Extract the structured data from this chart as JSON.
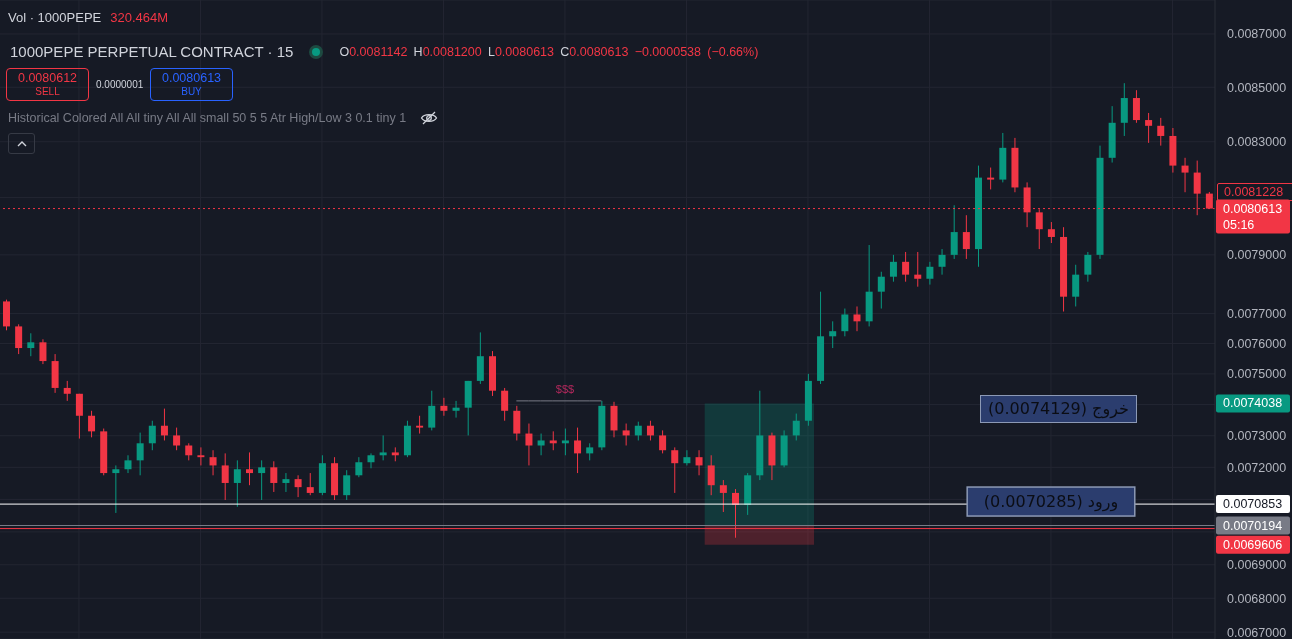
{
  "chart_data": {
    "type": "candlestick",
    "title": "1000PEPE PERPETUAL CONTRACT · 15",
    "subtitle": "O0.0081142 H0.0081200 L0.0080613 C0.0080613 −0.0000538 (−0.66%)",
    "categories": [
      null,
      null,
      null,
      null,
      null,
      null,
      null,
      null,
      null,
      null,
      null,
      null,
      null,
      null,
      null,
      null,
      null,
      null,
      null,
      null,
      null,
      null,
      null,
      null,
      null,
      null,
      null,
      null,
      null,
      null,
      null,
      null,
      null,
      null,
      null,
      null,
      null,
      null,
      null,
      null,
      null,
      null,
      null,
      null,
      null,
      null,
      null,
      null,
      null,
      null,
      null,
      null,
      null,
      null,
      null,
      null,
      null,
      null,
      null,
      null,
      null,
      null,
      null,
      null,
      null,
      null,
      null,
      null,
      null,
      null,
      null,
      null,
      null,
      null,
      null,
      null,
      null,
      null,
      null,
      null,
      null,
      null,
      null,
      null,
      null,
      null,
      null,
      null,
      null,
      null,
      null,
      null,
      null,
      null,
      null,
      null,
      null,
      null,
      null,
      null
    ],
    "ohlc": [
      [
        0.007741,
        0.007747,
        0.007644,
        0.007657
      ],
      [
        0.007657,
        0.007664,
        0.007565,
        0.007585
      ],
      [
        0.007585,
        0.007634,
        0.007558,
        0.007604
      ],
      [
        0.007604,
        0.007614,
        0.007532,
        0.007542
      ],
      [
        0.007542,
        0.007565,
        0.007438,
        0.007454
      ],
      [
        0.007454,
        0.007477,
        0.007412,
        0.007435
      ],
      [
        0.007435,
        0.007435,
        0.007291,
        0.007364
      ],
      [
        0.007364,
        0.00738,
        0.007295,
        0.007314
      ],
      [
        0.007314,
        0.007323,
        0.007175,
        0.007182
      ],
      [
        0.007182,
        0.007206,
        0.007058,
        0.007194
      ],
      [
        0.007194,
        0.007238,
        0.007182,
        0.007222
      ],
      [
        0.007222,
        0.00731,
        0.007175,
        0.007276
      ],
      [
        0.007276,
        0.007348,
        0.007254,
        0.007332
      ],
      [
        0.007332,
        0.007387,
        0.007285,
        0.007301
      ],
      [
        0.007301,
        0.007326,
        0.007254,
        0.007269
      ],
      [
        0.007269,
        0.007276,
        0.007222,
        0.007238
      ],
      [
        0.007238,
        0.007263,
        0.007206,
        0.007232
      ],
      [
        0.007232,
        0.007254,
        0.007175,
        0.007206
      ],
      [
        0.007206,
        0.007244,
        0.007098,
        0.007151
      ],
      [
        0.007151,
        0.007222,
        0.007077,
        0.007194
      ],
      [
        0.007194,
        0.007247,
        0.007144,
        0.007182
      ],
      [
        0.007182,
        0.007222,
        0.007098,
        0.0072
      ],
      [
        0.0072,
        0.007219,
        0.007123,
        0.007151
      ],
      [
        0.007151,
        0.007182,
        0.007123,
        0.007163
      ],
      [
        0.007163,
        0.007175,
        0.007107,
        0.007138
      ],
      [
        0.007138,
        0.007182,
        0.007113,
        0.00712
      ],
      [
        0.00712,
        0.007238,
        0.007113,
        0.007213
      ],
      [
        0.007213,
        0.007232,
        0.007098,
        0.007113
      ],
      [
        0.007113,
        0.007191,
        0.007098,
        0.007175
      ],
      [
        0.007175,
        0.007232,
        0.007169,
        0.007216
      ],
      [
        0.007216,
        0.007244,
        0.007197,
        0.007238
      ],
      [
        0.007238,
        0.007301,
        0.007222,
        0.007247
      ],
      [
        0.007247,
        0.007263,
        0.007219,
        0.007238
      ],
      [
        0.007238,
        0.007348,
        0.007232,
        0.007332
      ],
      [
        0.007332,
        0.007364,
        0.007307,
        0.007326
      ],
      [
        0.007326,
        0.007445,
        0.007317,
        0.007396
      ],
      [
        0.007396,
        0.007422,
        0.007364,
        0.00738
      ],
      [
        0.00738,
        0.007412,
        0.007358,
        0.00739
      ],
      [
        0.00739,
        0.007477,
        0.007301,
        0.007477
      ],
      [
        0.007477,
        0.007637,
        0.007467,
        0.007558
      ],
      [
        0.007558,
        0.007575,
        0.007428,
        0.007445
      ],
      [
        0.007445,
        0.007454,
        0.007348,
        0.00738
      ],
      [
        0.00738,
        0.007396,
        0.007285,
        0.007307
      ],
      [
        0.007307,
        0.007339,
        0.007206,
        0.007269
      ],
      [
        0.007269,
        0.007307,
        0.007238,
        0.007285
      ],
      [
        0.007285,
        0.007314,
        0.007254,
        0.007276
      ],
      [
        0.007276,
        0.007323,
        0.007238,
        0.007285
      ],
      [
        0.007285,
        0.007326,
        0.007182,
        0.007244
      ],
      [
        0.007244,
        0.007276,
        0.007222,
        0.007263
      ],
      [
        0.007263,
        0.007412,
        0.007254,
        0.007396
      ],
      [
        0.007396,
        0.007409,
        0.007295,
        0.007317
      ],
      [
        0.007317,
        0.007339,
        0.007269,
        0.007301
      ],
      [
        0.007301,
        0.007345,
        0.007285,
        0.007332
      ],
      [
        0.007332,
        0.007348,
        0.007285,
        0.007301
      ],
      [
        0.007301,
        0.007317,
        0.007244,
        0.007254
      ],
      [
        0.007254,
        0.007263,
        0.00712,
        0.007213
      ],
      [
        0.007213,
        0.007254,
        0.007206,
        0.007232
      ],
      [
        0.007232,
        0.007254,
        0.007175,
        0.007206
      ],
      [
        0.007206,
        0.007238,
        0.007113,
        0.007144
      ],
      [
        0.007144,
        0.00716,
        0.007061,
        0.00712
      ],
      [
        0.00712,
        0.007132,
        0.006982,
        0.007083
      ],
      [
        0.007083,
        0.007182,
        0.007052,
        0.007175
      ],
      [
        0.007175,
        0.007445,
        0.00716,
        0.007301
      ],
      [
        0.007301,
        0.00731,
        0.00716,
        0.007206
      ],
      [
        0.007206,
        0.007317,
        0.0072,
        0.007301
      ],
      [
        0.007301,
        0.007371,
        0.007285,
        0.007348
      ],
      [
        0.007348,
        0.0075,
        0.007332,
        0.007477
      ],
      [
        0.007477,
        0.007774,
        0.007467,
        0.007624
      ],
      [
        0.007624,
        0.007674,
        0.007585,
        0.007641
      ],
      [
        0.007641,
        0.007717,
        0.007624,
        0.007697
      ],
      [
        0.007697,
        0.007724,
        0.007641,
        0.007674
      ],
      [
        0.007674,
        0.007934,
        0.007657,
        0.007774
      ],
      [
        0.007774,
        0.007842,
        0.007717,
        0.007825
      ],
      [
        0.007825,
        0.0079,
        0.007808,
        0.007876
      ],
      [
        0.007876,
        0.00791,
        0.007808,
        0.007832
      ],
      [
        0.007832,
        0.00791,
        0.007791,
        0.007818
      ],
      [
        0.007818,
        0.007876,
        0.007798,
        0.007859
      ],
      [
        0.007859,
        0.00792,
        0.007832,
        0.0079
      ],
      [
        0.0079,
        0.008073,
        0.007886,
        0.007979
      ],
      [
        0.007979,
        0.008038,
        0.007886,
        0.00792
      ],
      [
        0.00792,
        0.008214,
        0.007859,
        0.008171
      ],
      [
        0.008171,
        0.008207,
        0.008129,
        0.008164
      ],
      [
        0.008164,
        0.008332,
        0.008154,
        0.008278
      ],
      [
        0.008278,
        0.008314,
        0.008119,
        0.008136
      ],
      [
        0.008136,
        0.008154,
        0.007996,
        0.008048
      ],
      [
        0.008048,
        0.008059,
        0.00792,
        0.007989
      ],
      [
        0.007989,
        0.008014,
        0.007941,
        0.007962
      ],
      [
        0.007962,
        0.007996,
        0.007707,
        0.007757
      ],
      [
        0.007757,
        0.007866,
        0.007724,
        0.007832
      ],
      [
        0.007832,
        0.00791,
        0.007808,
        0.0079
      ],
      [
        0.0079,
        0.008286,
        0.007886,
        0.008242
      ],
      [
        0.008242,
        0.00843,
        0.008225,
        0.008369
      ],
      [
        0.008369,
        0.008515,
        0.008321,
        0.00846
      ],
      [
        0.00846,
        0.008489,
        0.008369,
        0.008379
      ],
      [
        0.008379,
        0.008405,
        0.008296,
        0.008358
      ],
      [
        0.008358,
        0.008387,
        0.008286,
        0.008321
      ],
      [
        0.008321,
        0.00835,
        0.008189,
        0.008214
      ],
      [
        0.008214,
        0.008242,
        0.008119,
        0.008189
      ],
      [
        0.008189,
        0.008232,
        0.008038,
        0.008114
      ],
      [
        0.0081142,
        0.00812,
        0.0080613,
        0.0080613
      ]
    ],
    "colors": [
      "#f23645",
      "#f23645",
      "#089981",
      "#f23645",
      "#f23645",
      "#f23645",
      "#f23645",
      "#f23645",
      "#f23645",
      "#089981",
      "#089981",
      "#089981",
      "#089981",
      "#f23645",
      "#f23645",
      "#f23645",
      "#f23645",
      "#f23645",
      "#f23645",
      "#089981",
      "#f23645",
      "#089981",
      "#f23645",
      "#089981",
      "#f23645",
      "#f23645",
      "#089981",
      "#f23645",
      "#089981",
      "#089981",
      "#089981",
      "#089981",
      "#f23645",
      "#089981",
      "#f23645",
      "#089981",
      "#f23645",
      "#089981",
      "#089981",
      "#089981",
      "#f23645",
      "#f23645",
      "#f23645",
      "#f23645",
      "#089981",
      "#f23645",
      "#089981",
      "#f23645",
      "#089981",
      "#089981",
      "#f23645",
      "#f23645",
      "#089981",
      "#f23645",
      "#f23645",
      "#f23645",
      "#089981",
      "#f23645",
      "#f23645",
      "#f23645",
      "#f23645",
      "#089981",
      "#089981",
      "#f23645",
      "#089981",
      "#089981",
      "#089981",
      "#089981",
      "#089981",
      "#089981",
      "#f23645",
      "#089981",
      "#089981",
      "#089981",
      "#f23645",
      "#f23645",
      "#089981",
      "#089981",
      "#089981",
      "#f23645",
      "#089981",
      "#f23645",
      "#089981",
      "#f23645",
      "#f23645",
      "#f23645",
      "#f23645",
      "#f23645",
      "#089981",
      "#089981",
      "#089981",
      "#089981",
      "#089981",
      "#f23645",
      "#f23645",
      "#f23645",
      "#f23645",
      "#f23645",
      "#f23645",
      "#f23645"
    ],
    "series": [
      {
        "type": "line",
        "color": "#787b86",
        "values": [
          null,
          null,
          null,
          null,
          null,
          null,
          null,
          null,
          null,
          null,
          null,
          null,
          null,
          null,
          null,
          null,
          null,
          null,
          null,
          null,
          null,
          null,
          null,
          null,
          null,
          null,
          null,
          null,
          null,
          null,
          null,
          null,
          null,
          null,
          null,
          null,
          null,
          null,
          null,
          null,
          null,
          null,
          0.007412,
          0.007412,
          0.007412,
          0.007412,
          0.007412,
          0.007412,
          0.007412,
          0.007412,
          null,
          null,
          null,
          null,
          null,
          null,
          null,
          null,
          null,
          null,
          null,
          null,
          null,
          null,
          null,
          null,
          null,
          null,
          null,
          null,
          null,
          null,
          null,
          null,
          null,
          null,
          null,
          null,
          null,
          null,
          null,
          null,
          null,
          null,
          null,
          null,
          null,
          null,
          null,
          null,
          null,
          null,
          null,
          null,
          null,
          null,
          null,
          null,
          null,
          null
        ]
      }
    ],
    "log": true,
    "ylim": [
      0.00668,
      0.00883
    ],
    "yticks": [
      {
        "value": 0.0067,
        "label": "0.0067000"
      },
      {
        "value": 0.0068,
        "label": "0.0068000"
      },
      {
        "value": 0.0069,
        "label": "0.0069000"
      },
      {
        "value": 0.007,
        "label": null
      },
      {
        "value": 0.0071,
        "label": null
      },
      {
        "value": 0.0072,
        "label": "0.0072000"
      },
      {
        "value": 0.0073,
        "label": "0.0073000"
      },
      {
        "value": 0.0074,
        "label": null
      },
      {
        "value": 0.0075,
        "label": "0.0075000"
      },
      {
        "value": 0.0076,
        "label": "0.0076000"
      },
      {
        "value": 0.0077,
        "label": "0.0077000"
      },
      {
        "value": 0.0079,
        "label": "0.0079000"
      },
      {
        "value": 0.0081,
        "label": null
      },
      {
        "value": 0.0083,
        "label": "0.0083000"
      },
      {
        "value": 0.0085,
        "label": "0.0085000"
      },
      {
        "value": 0.0087,
        "label": "0.0087000"
      }
    ],
    "grid": true,
    "tick_labels": "y",
    "ref_lines": [
      {
        "axis": "y",
        "value": 0.0080613,
        "label": "0.0080613\n05:16",
        "color": "#f23645",
        "line_style": "dotted"
      },
      {
        "axis": "y",
        "value": 0.0070853,
        "label": "0.0070853",
        "color": "#ffffff"
      },
      {
        "axis": "y",
        "value": 0.0070194,
        "label": "0.0070194",
        "color": "#787b86"
      },
      {
        "axis": "y",
        "value": 0.00701,
        "color": "#f23645"
      }
    ],
    "bands": [
      {
        "axis": "y",
        "from": 0.0070194,
        "to": 0.0074038,
        "color": "#089981"
      },
      {
        "axis": "y",
        "from": 0.0069606,
        "to": 0.0070194,
        "color": "#f23645"
      }
    ],
    "annotations": [
      "Vol · 1000PEPE",
      "320.464M",
      "0.0080612",
      "SELL",
      "0.0000001",
      "0.0080613",
      "BUY",
      "Historical Colored All All tiny All All small 50 5 5 Atr High/Low 3 0.1 tiny 1",
      {
        "text": "$$$",
        "y": 0.007412
      },
      "خروج (0.0074129)",
      {
        "text": "ورود (0.0070285)",
        "y": 0.0070285
      },
      "0.0081228",
      "0.0074038",
      "0.0069606"
    ]
  }
}
